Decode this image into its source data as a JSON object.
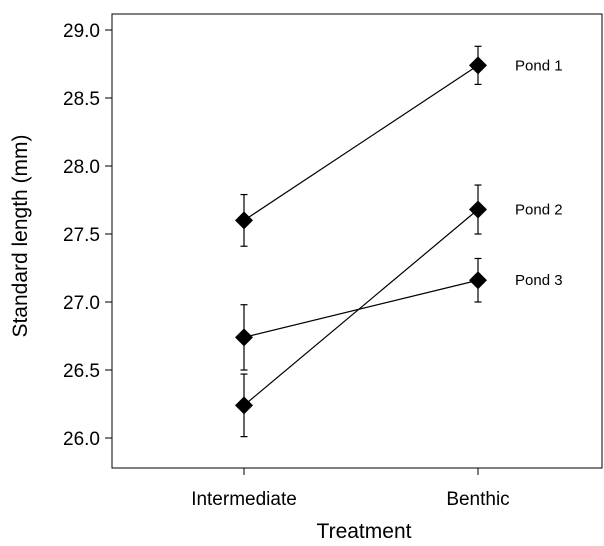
{
  "chart_data": {
    "type": "line",
    "xlabel": "Treatment",
    "ylabel": "Standard length (mm)",
    "categories": [
      "Intermediate",
      "Benthic"
    ],
    "ylim": [
      25.8,
      29.1
    ],
    "yticks": [
      "26.0",
      "26.5",
      "27.0",
      "27.5",
      "28.0",
      "28.5",
      "29.0"
    ],
    "grid": false,
    "legend": "inline labels at right end of each line",
    "series": [
      {
        "name": "Pond 1",
        "values": [
          27.6,
          28.74
        ],
        "errors": [
          0.19,
          0.14
        ]
      },
      {
        "name": "Pond 2",
        "values": [
          26.24,
          27.68
        ],
        "errors": [
          0.23,
          0.18
        ]
      },
      {
        "name": "Pond 3",
        "values": [
          26.74,
          27.16
        ],
        "errors": [
          0.24,
          0.16
        ]
      }
    ]
  }
}
